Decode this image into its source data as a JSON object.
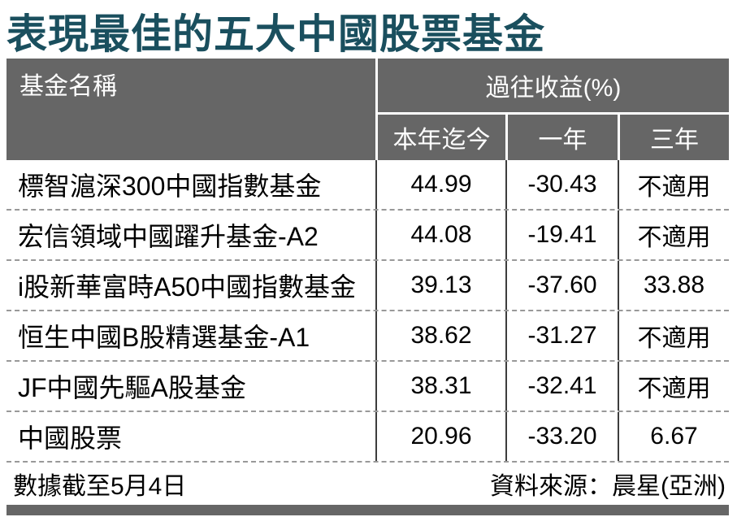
{
  "chart_data": {
    "type": "table",
    "title": "表現最佳的五大中國股票基金",
    "header": {
      "fund_name": "基金名稱",
      "returns_group": "過往收益(%)",
      "sub_columns": [
        "本年迄今",
        "一年",
        "三年"
      ]
    },
    "rows": [
      {
        "name": "標智滬深300中國指數基金",
        "ytd": "44.99",
        "one_year": "-30.43",
        "three_year": "不適用"
      },
      {
        "name": "宏信領域中國躍升基金-A2",
        "ytd": "44.08",
        "one_year": "-19.41",
        "three_year": "不適用"
      },
      {
        "name": "i股新華富時A50中國指數基金",
        "ytd": "39.13",
        "one_year": "-37.60",
        "three_year": "33.88"
      },
      {
        "name": "恒生中國B股精選基金-A1",
        "ytd": "38.62",
        "one_year": "-31.27",
        "three_year": "不適用"
      },
      {
        "name": "JF中國先驅A股基金",
        "ytd": "38.31",
        "one_year": "-32.41",
        "three_year": "不適用"
      },
      {
        "name": "中國股票",
        "ytd": "20.96",
        "one_year": "-33.20",
        "three_year": "6.67"
      }
    ],
    "footer": {
      "as_of": "數據截至5月4日",
      "source": "資料來源：晨星(亞洲)"
    },
    "layout_hints": {
      "grid": "off",
      "row_divider_style": "dashed"
    },
    "colors": {
      "title_text": "#1a4f5e",
      "header_bg": "#666666",
      "header_text": "#ffffff",
      "body_text": "#000000",
      "row_divider": "#999999",
      "column_line": "#3d3d3d",
      "bottom_bar": "#666666"
    }
  }
}
